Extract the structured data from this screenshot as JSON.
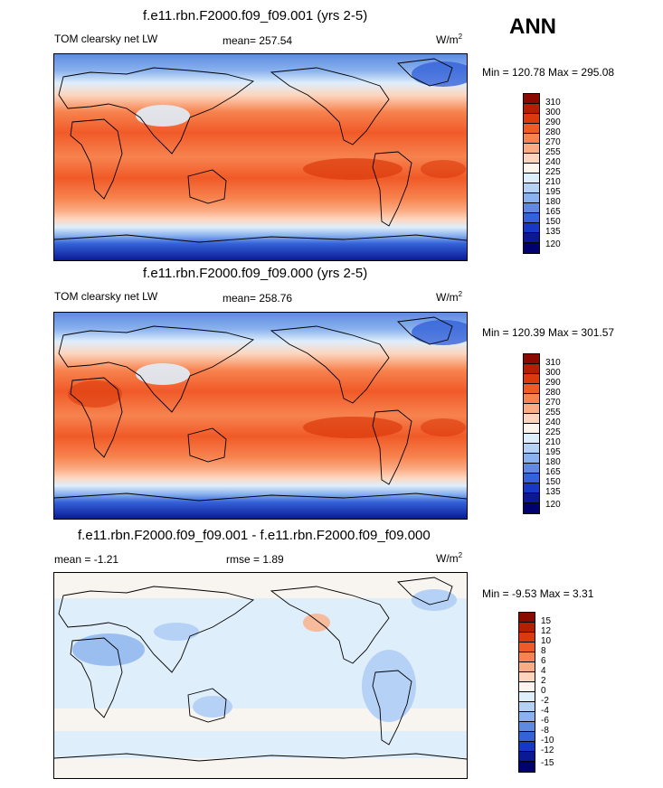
{
  "season": "ANN",
  "panels": [
    {
      "title": "f.e11.rbn.F2000.f09_f09.001 (yrs 2-5)",
      "left_label": "TOM clearsky net LW",
      "center_label": "mean= 257.54",
      "units": "W/m",
      "units_sup": "2",
      "minmax": "Min = 120.78 Max = 295.08",
      "levels": [
        "310",
        "300",
        "290",
        "280",
        "270",
        "255",
        "240",
        "225",
        "210",
        "195",
        "180",
        "165",
        "150",
        "135",
        "120"
      ],
      "colors": [
        "#8b0a00",
        "#b51e00",
        "#dc3a0c",
        "#f05a28",
        "#f7834f",
        "#fbac85",
        "#fdd5bd",
        "#fef5ee",
        "#dfeefb",
        "#b5d2f6",
        "#8ab2ee",
        "#5e8be0",
        "#3462d8",
        "#1638c5",
        "#0a1a96",
        "#000070"
      ]
    },
    {
      "title": "f.e11.rbn.F2000.f09_f09.000 (yrs 2-5)",
      "left_label": "TOM clearsky net LW",
      "center_label": "mean= 258.76",
      "units": "W/m",
      "units_sup": "2",
      "minmax": "Min = 120.39 Max = 301.57",
      "levels": [
        "310",
        "300",
        "290",
        "280",
        "270",
        "255",
        "240",
        "225",
        "210",
        "195",
        "180",
        "165",
        "150",
        "135",
        "120"
      ],
      "colors": [
        "#8b0a00",
        "#b51e00",
        "#dc3a0c",
        "#f05a28",
        "#f7834f",
        "#fbac85",
        "#fdd5bd",
        "#fef5ee",
        "#dfeefb",
        "#b5d2f6",
        "#8ab2ee",
        "#5e8be0",
        "#3462d8",
        "#1638c5",
        "#0a1a96",
        "#000070"
      ]
    },
    {
      "title": "f.e11.rbn.F2000.f09_f09.001 - f.e11.rbn.F2000.f09_f09.000",
      "left_label": "mean =  -1.21",
      "center_label": "rmse =   1.89",
      "units": "W/m",
      "units_sup": "2",
      "minmax": "Min =  -9.53 Max =   3.31",
      "levels": [
        "15",
        "12",
        "10",
        "8",
        "6",
        "4",
        "2",
        "0",
        "-2",
        "-4",
        "-6",
        "-8",
        "-10",
        "-12",
        "-15"
      ],
      "colors": [
        "#8b0a00",
        "#b51e00",
        "#dc3a0c",
        "#f05a28",
        "#f7834f",
        "#fbac85",
        "#fdd5bd",
        "#fef5ee",
        "#dfeefb",
        "#b5d2f6",
        "#8ab2ee",
        "#5e8be0",
        "#3462d8",
        "#1638c5",
        "#0a1a96",
        "#000070"
      ]
    }
  ]
}
